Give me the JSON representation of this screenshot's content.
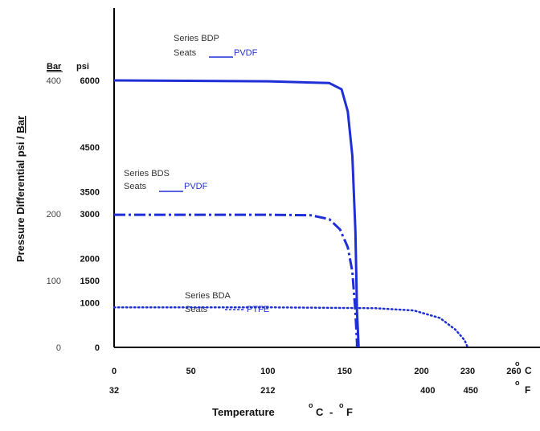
{
  "chart_data": {
    "type": "line",
    "xlabel": "Temperature",
    "xlabel_units": {
      "c_sup": "o",
      "c": "C",
      "sep": "-",
      "f_sup": "o",
      "f": "F"
    },
    "ylabel": {
      "prefix": "Pressure Differential psi / ",
      "bar": "Bar"
    },
    "y_unit_headers": {
      "bar": "Bar",
      "psi": "psi"
    },
    "x_ticks_c": [
      {
        "v": 0,
        "label": "0"
      },
      {
        "v": 50,
        "label": "50"
      },
      {
        "v": 100,
        "label": "100"
      },
      {
        "v": 150,
        "label": "150"
      },
      {
        "v": 200,
        "label": "200"
      },
      {
        "v": 230,
        "label": "230"
      },
      {
        "v": 260,
        "label": "260"
      }
    ],
    "x_ticks_c_unit": {
      "sup": "o",
      "unit": "C"
    },
    "x_ticks_f": [
      {
        "v": 0,
        "label": "32"
      },
      {
        "v": 100,
        "label": "212"
      },
      {
        "v": 204,
        "label": "400"
      },
      {
        "v": 232,
        "label": "450"
      }
    ],
    "x_ticks_f_unit": {
      "sup": "o",
      "unit": "F"
    },
    "y_ticks_psi": [
      {
        "v": 0,
        "label": "0"
      },
      {
        "v": 1000,
        "label": "1000"
      },
      {
        "v": 1500,
        "label": "1500"
      },
      {
        "v": 2000,
        "label": "2000"
      },
      {
        "v": 3000,
        "label": "3000"
      },
      {
        "v": 3500,
        "label": "3500"
      },
      {
        "v": 4500,
        "label": "4500"
      },
      {
        "v": 6000,
        "label": "6000"
      }
    ],
    "y_ticks_bar": [
      {
        "v": 0,
        "label": "0"
      },
      {
        "v": 1500,
        "label": "100"
      },
      {
        "v": 3000,
        "label": "200"
      },
      {
        "v": 6000,
        "label": "400"
      }
    ],
    "series": [
      {
        "style": "solid",
        "x": [
          0,
          100,
          140,
          148,
          152,
          155,
          157,
          158,
          159,
          159
        ],
        "y": [
          6000,
          5980,
          5940,
          5800,
          5300,
          4300,
          2600,
          800,
          50,
          0
        ]
      },
      {
        "style": "dashdot",
        "x": [
          0,
          100,
          128,
          140,
          147,
          152,
          155,
          157,
          158,
          158
        ],
        "y": [
          2980,
          2980,
          2970,
          2880,
          2650,
          2250,
          1700,
          800,
          100,
          0
        ]
      },
      {
        "style": "dotted",
        "x": [
          0,
          100,
          170,
          195,
          212,
          222,
          228,
          230
        ],
        "y": [
          900,
          900,
          880,
          830,
          660,
          400,
          160,
          0
        ]
      }
    ],
    "annotations": [
      {
        "series": "Series  BDP",
        "seats_label": "Seats",
        "seats_value": "PVDF"
      },
      {
        "series": "Series  BDS",
        "seats_label": "Seats",
        "seats_value": "PVDF"
      },
      {
        "series": "Series  BDA",
        "seats_label": "Seats",
        "seats_value": "PTFE"
      }
    ],
    "line_color": "#1f2fd6",
    "xlim": [
      0,
      260
    ],
    "ylim": [
      0,
      6000
    ]
  }
}
